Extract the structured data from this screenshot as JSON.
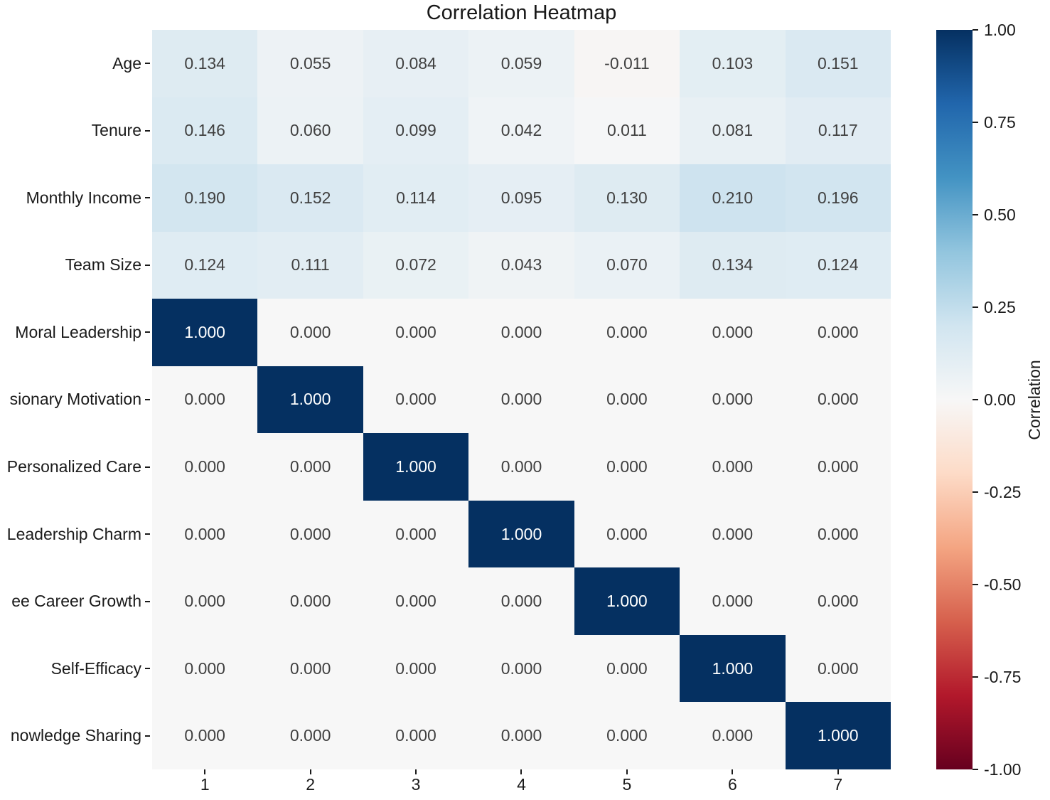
{
  "chart_data": {
    "type": "heatmap",
    "title": "Correlation Heatmap",
    "rows": [
      "Age",
      "Tenure",
      "Monthly Income",
      "Team Size",
      "Moral Leadership",
      "sionary Motivation",
      "Personalized Care",
      "Leadership Charm",
      "ee Career Growth",
      "Self-Efficacy",
      "nowledge Sharing"
    ],
    "columns": [
      "1",
      "2",
      "3",
      "4",
      "5",
      "6",
      "7"
    ],
    "values": [
      [
        0.134,
        0.055,
        0.084,
        0.059,
        -0.011,
        0.103,
        0.151
      ],
      [
        0.146,
        0.06,
        0.099,
        0.042,
        0.011,
        0.081,
        0.117
      ],
      [
        0.19,
        0.152,
        0.114,
        0.095,
        0.13,
        0.21,
        0.196
      ],
      [
        0.124,
        0.111,
        0.072,
        0.043,
        0.07,
        0.134,
        0.124
      ],
      [
        1.0,
        0.0,
        0.0,
        0.0,
        0.0,
        0.0,
        0.0
      ],
      [
        0.0,
        1.0,
        0.0,
        0.0,
        0.0,
        0.0,
        0.0
      ],
      [
        0.0,
        0.0,
        1.0,
        0.0,
        0.0,
        0.0,
        0.0
      ],
      [
        0.0,
        0.0,
        0.0,
        1.0,
        0.0,
        0.0,
        0.0
      ],
      [
        0.0,
        0.0,
        0.0,
        0.0,
        1.0,
        0.0,
        0.0
      ],
      [
        0.0,
        0.0,
        0.0,
        0.0,
        0.0,
        1.0,
        0.0
      ],
      [
        0.0,
        0.0,
        0.0,
        0.0,
        0.0,
        0.0,
        1.0
      ]
    ],
    "annotation_decimals": 3,
    "colormap": {
      "name": "RdBu",
      "stops": [
        "#67001f",
        "#b2182b",
        "#d6604d",
        "#f4a582",
        "#fddbc7",
        "#f7f7f7",
        "#d1e5f0",
        "#92c5de",
        "#4393c3",
        "#2166ac",
        "#053061"
      ]
    },
    "colorbar": {
      "label": "Correlation",
      "vmin": -1.0,
      "vmax": 1.0,
      "ticks": [
        "1.00",
        "0.75",
        "0.50",
        "0.25",
        "0.00",
        "-0.25",
        "-0.50",
        "-0.75",
        "-1.00"
      ]
    },
    "annotation_color_dark": "#404040",
    "annotation_color_light": "#ffffff",
    "axis_text_color": "#1a1a1a",
    "legend_position": "right",
    "grid": false
  }
}
